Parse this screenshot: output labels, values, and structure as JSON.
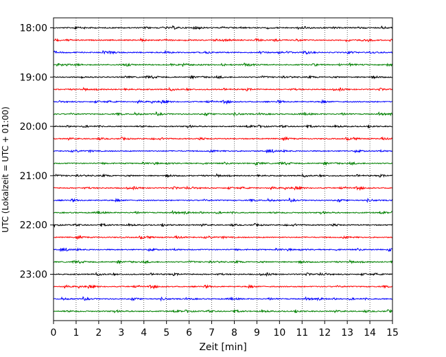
{
  "chart_data": {
    "type": "line",
    "title": "",
    "xlabel": "Zeit  [min]",
    "ylabel": "UTC (Lokalzeit = UTC + 01:00)",
    "xlim": [
      0,
      15
    ],
    "x_ticks": [
      "0",
      "1",
      "2",
      "3",
      "4",
      "5",
      "6",
      "7",
      "8",
      "9",
      "10",
      "11",
      "12",
      "13",
      "14",
      "15"
    ],
    "y_ticks": [
      {
        "label": "18:00",
        "trace_index": 0
      },
      {
        "label": "19:00",
        "trace_index": 4
      },
      {
        "label": "20:00",
        "trace_index": 8
      },
      {
        "label": "21:00",
        "trace_index": 12
      },
      {
        "label": "22:00",
        "trace_index": 16
      },
      {
        "label": "23:00",
        "trace_index": 20
      }
    ],
    "vertical_grid": true,
    "grid_style": "dotted",
    "trace_interval_minutes": 15,
    "trace_colors": [
      "#000000",
      "#ff0000",
      "#0000ff",
      "#008000"
    ],
    "traces": [
      "18:00",
      "18:15",
      "18:30",
      "18:45",
      "19:00",
      "19:15",
      "19:30",
      "19:45",
      "20:00",
      "20:15",
      "20:30",
      "20:45",
      "21:00",
      "21:15",
      "21:30",
      "21:45",
      "22:00",
      "22:15",
      "22:30",
      "22:45",
      "23:00",
      "23:15",
      "23:30",
      "23:45"
    ]
  }
}
